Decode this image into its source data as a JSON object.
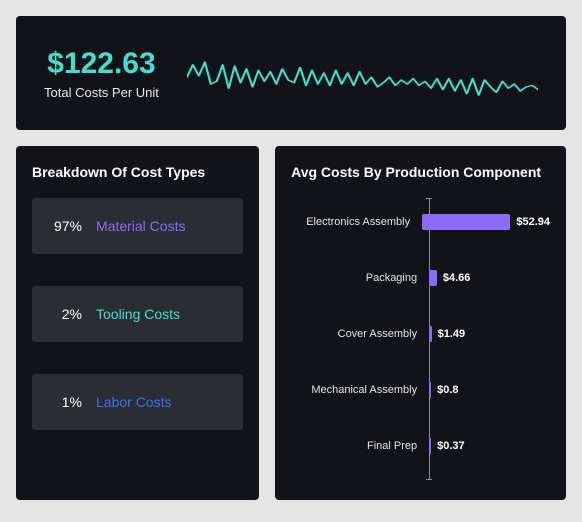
{
  "hero": {
    "value": "$122.63",
    "label": "Total Costs Per Unit",
    "value_color": "#3fe0d0",
    "sparkline": {
      "stroke": "#3fe0d0",
      "stroke_width": 2,
      "points": [
        54,
        36,
        52,
        32,
        64,
        60,
        36,
        70,
        38,
        62,
        42,
        68,
        44,
        60,
        46,
        64,
        42,
        58,
        62,
        40,
        66,
        44,
        64,
        48,
        66,
        44,
        64,
        48,
        66,
        46,
        64,
        54,
        68,
        62,
        54,
        66,
        58,
        64,
        56,
        66,
        60,
        70,
        56,
        72,
        56,
        74,
        58,
        78,
        56,
        80,
        58,
        68,
        76,
        60,
        70,
        64,
        74,
        68,
        66,
        72
      ]
    }
  },
  "breakdown": {
    "title": "Breakdown Of Cost Types",
    "background": "#2a2d33",
    "items": [
      {
        "pct": "97%",
        "label": "Material Costs",
        "color": "#8c6cf7"
      },
      {
        "pct": "2%",
        "label": "Tooling Costs",
        "color": "#3fe0d0"
      },
      {
        "pct": "1%",
        "label": "Labor Costs",
        "color": "#3d72f5"
      }
    ]
  },
  "components": {
    "title": "Avg Costs By Production Component",
    "bar_color": "#8c6cf7",
    "max_value": 60,
    "axis_color": "#8a8d94",
    "rows": [
      {
        "label": "Electronics Assembly",
        "value": 52.94,
        "display": "$52.94"
      },
      {
        "label": "Packaging",
        "value": 4.66,
        "display": "$4.66"
      },
      {
        "label": "Cover Assembly",
        "value": 1.49,
        "display": "$1.49"
      },
      {
        "label": "Mechanical Assembly",
        "value": 0.8,
        "display": "$0.8"
      },
      {
        "label": "Final Prep",
        "value": 0.37,
        "display": "$0.37"
      }
    ]
  }
}
